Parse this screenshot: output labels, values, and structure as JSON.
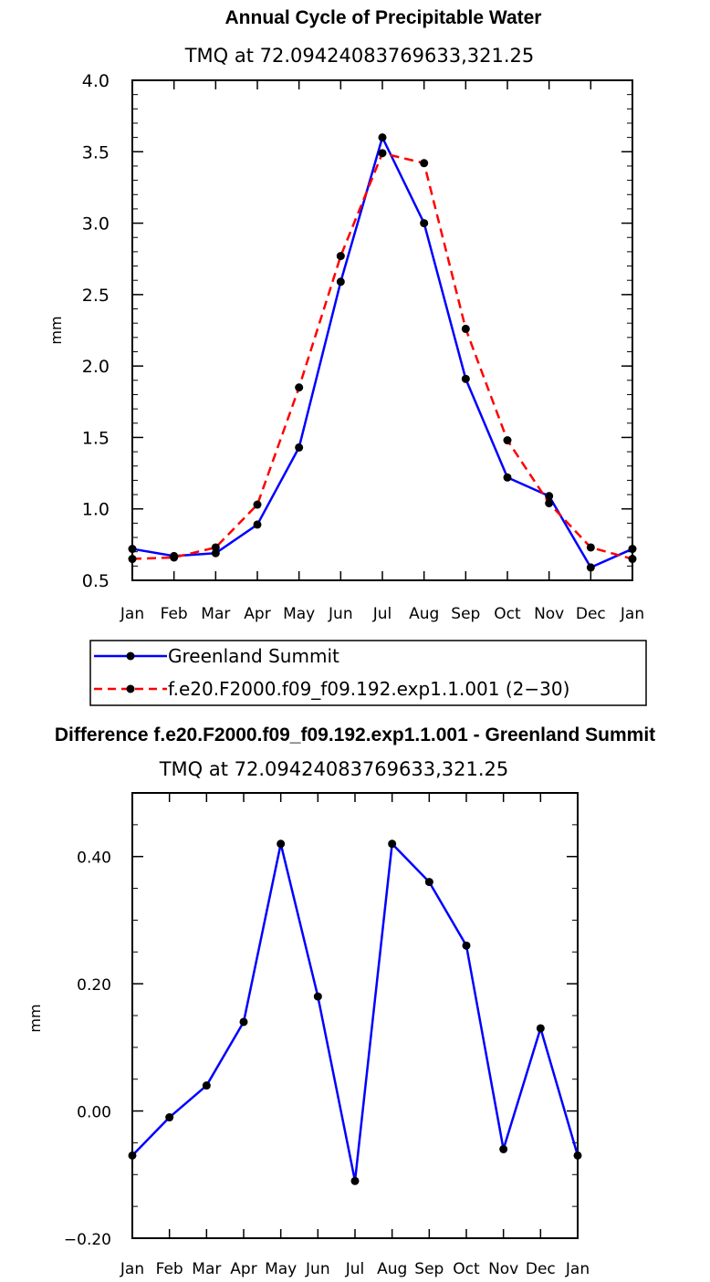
{
  "chart_data": [
    {
      "type": "line",
      "title": "Annual Cycle of Precipitable Water",
      "subtitle": "TMQ at 72.09424083769633,321.25",
      "xlabel": "",
      "ylabel": "mm",
      "categories": [
        "Jan",
        "Feb",
        "Mar",
        "Apr",
        "May",
        "Jun",
        "Jul",
        "Aug",
        "Sep",
        "Oct",
        "Nov",
        "Dec",
        "Jan"
      ],
      "ylim": [
        0.5,
        4.0
      ],
      "yticks": [
        "0.5",
        "1.0",
        "1.5",
        "2.0",
        "2.5",
        "3.0",
        "3.5",
        "4.0"
      ],
      "grid": false,
      "legend_position": "bottom",
      "series": [
        {
          "name": "Greenland Summit",
          "color": "#0000ff",
          "style": "solid",
          "values": [
            0.72,
            0.67,
            0.69,
            0.89,
            1.43,
            2.59,
            3.6,
            3.0,
            1.91,
            1.22,
            1.09,
            0.59,
            0.72
          ]
        },
        {
          "name": "f.e20.F2000.f09_f09.192.exp1.1.001 (2−30)",
          "color": "#ff0000",
          "style": "dashed",
          "values": [
            0.65,
            0.66,
            0.73,
            1.03,
            1.85,
            2.77,
            3.49,
            3.42,
            2.26,
            1.48,
            1.04,
            0.73,
            0.65
          ]
        }
      ]
    },
    {
      "type": "line",
      "title": "Difference f.e20.F2000.f09_f09.192.exp1.1.001 - Greenland Summit",
      "subtitle": "TMQ at 72.09424083769633,321.25",
      "xlabel": "",
      "ylabel": "mm",
      "categories": [
        "Jan",
        "Feb",
        "Mar",
        "Apr",
        "May",
        "Jun",
        "Jul",
        "Aug",
        "Sep",
        "Oct",
        "Nov",
        "Dec",
        "Jan"
      ],
      "ylim": [
        -0.2,
        0.5
      ],
      "yticks": [
        "−0.20",
        "0.00",
        "0.20",
        "0.40"
      ],
      "grid": false,
      "series": [
        {
          "name": "",
          "color": "#0000ff",
          "style": "solid",
          "values": [
            -0.07,
            -0.01,
            0.04,
            0.14,
            0.42,
            0.18,
            -0.11,
            0.42,
            0.36,
            0.26,
            -0.06,
            0.13,
            -0.07
          ]
        }
      ]
    }
  ]
}
